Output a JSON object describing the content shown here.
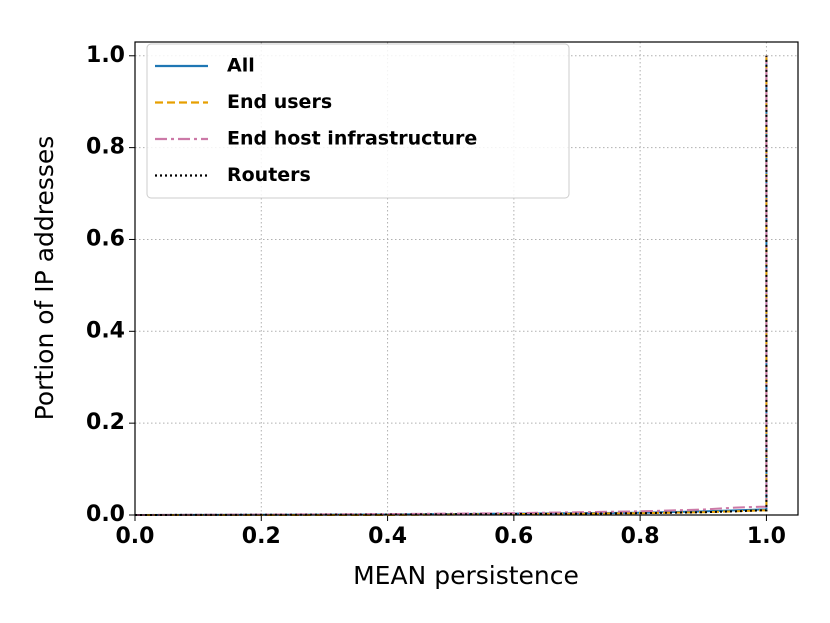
{
  "chart_data": {
    "type": "line",
    "xlabel": "MEAN persistence",
    "ylabel": "Portion of IP addresses",
    "x": [
      0,
      0.4,
      0.6,
      0.8,
      0.9,
      0.95,
      0.99,
      1.0,
      1.0
    ],
    "series": [
      {
        "name": "All",
        "color": "#1f77b4",
        "dash": "solid",
        "values": [
          0,
          0.001,
          0.003,
          0.005,
          0.008,
          0.01,
          0.012,
          0.012,
          1.0
        ]
      },
      {
        "name": "End users",
        "color": "#e69f00",
        "dash": "dashed",
        "values": [
          0,
          0,
          0.002,
          0.004,
          0.006,
          0.008,
          0.01,
          0.01,
          1.0
        ]
      },
      {
        "name": "End host infrastructure",
        "color": "#cc79a7",
        "dash": "dashdot",
        "values": [
          0,
          0.002,
          0.004,
          0.008,
          0.012,
          0.016,
          0.018,
          0.018,
          1.0
        ]
      },
      {
        "name": "Routers",
        "color": "#000000",
        "dash": "dotted",
        "values": [
          0,
          0.001,
          0.002,
          0.004,
          0.006,
          0.008,
          0.01,
          0.01,
          1.0
        ]
      }
    ],
    "xlim": [
      0,
      1.05
    ],
    "ylim": [
      0,
      1.03
    ],
    "xticks": [
      {
        "value": 0,
        "label": "0.0"
      },
      0.2,
      0.4,
      0.6,
      0.8,
      {
        "value": 1,
        "label": "1.0"
      }
    ],
    "yticks": [
      {
        "value": 0,
        "label": "0.0"
      },
      0.2,
      0.4,
      0.6,
      0.8,
      {
        "value": 1,
        "label": "1.0"
      }
    ],
    "grid": true,
    "legend": "upper left"
  }
}
